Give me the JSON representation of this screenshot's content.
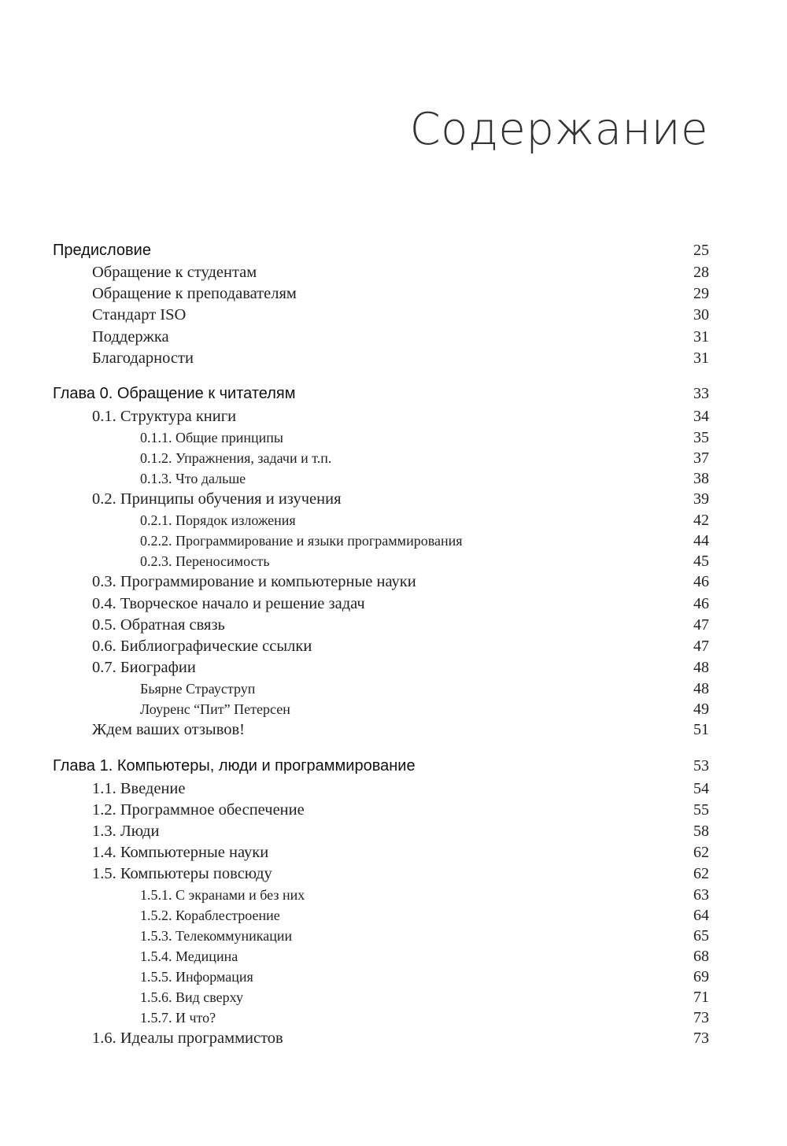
{
  "title": "Содержание",
  "toc": [
    {
      "level": 0,
      "label": "Предисловие",
      "page": "25"
    },
    {
      "level": 1,
      "label": "Обращение к студентам",
      "page": "28"
    },
    {
      "level": 1,
      "label": "Обращение к преподавателям",
      "page": "29"
    },
    {
      "level": 1,
      "label": "Стандарт ISO",
      "page": "30"
    },
    {
      "level": 1,
      "label": "Поддержка",
      "page": "31"
    },
    {
      "level": 1,
      "label": "Благодарности",
      "page": "31"
    },
    {
      "level": 0,
      "label": "Глава 0. Обращение к читателям",
      "page": "33"
    },
    {
      "level": 1,
      "label": "0.1. Структура книги",
      "page": "34"
    },
    {
      "level": 2,
      "label": "0.1.1. Общие принципы",
      "page": "35"
    },
    {
      "level": 2,
      "label": "0.1.2. Упражнения, задачи и т.п.",
      "page": "37"
    },
    {
      "level": 2,
      "label": "0.1.3. Что дальше",
      "page": "38"
    },
    {
      "level": 1,
      "label": "0.2. Принципы обучения и изучения",
      "page": "39"
    },
    {
      "level": 2,
      "label": "0.2.1. Порядок изложения",
      "page": "42"
    },
    {
      "level": 2,
      "label": "0.2.2. Программирование и языки программирования",
      "page": "44"
    },
    {
      "level": 2,
      "label": "0.2.3. Переносимость",
      "page": "45"
    },
    {
      "level": 1,
      "label": "0.3. Программирование и компьютерные науки",
      "page": "46"
    },
    {
      "level": 1,
      "label": "0.4. Творческое начало и решение задач",
      "page": "46"
    },
    {
      "level": 1,
      "label": "0.5. Обратная связь",
      "page": "47"
    },
    {
      "level": 1,
      "label": "0.6. Библиографические ссылки",
      "page": "47"
    },
    {
      "level": 1,
      "label": "0.7. Биографии",
      "page": "48"
    },
    {
      "level": 2,
      "label": "Бьярне Страуструп",
      "page": "48"
    },
    {
      "level": 2,
      "label": "Лоуренс “Пит” Петерсен",
      "page": "49"
    },
    {
      "level": 1,
      "label": "Ждем ваших отзывов!",
      "page": "51"
    },
    {
      "level": 0,
      "label": "Глава 1. Компьютеры, люди и программирование",
      "page": "53"
    },
    {
      "level": 1,
      "label": "1.1. Введение",
      "page": "54"
    },
    {
      "level": 1,
      "label": "1.2. Программное обеспечение",
      "page": "55"
    },
    {
      "level": 1,
      "label": "1.3. Люди",
      "page": "58"
    },
    {
      "level": 1,
      "label": "1.4. Компьютерные науки",
      "page": "62"
    },
    {
      "level": 1,
      "label": "1.5. Компьютеры повсюду",
      "page": "62"
    },
    {
      "level": 2,
      "label": "1.5.1. С экранами и без них",
      "page": "63"
    },
    {
      "level": 2,
      "label": "1.5.2. Кораблестроение",
      "page": "64"
    },
    {
      "level": 2,
      "label": "1.5.3. Телекоммуникации",
      "page": "65"
    },
    {
      "level": 2,
      "label": "1.5.4. Медицина",
      "page": "68"
    },
    {
      "level": 2,
      "label": "1.5.5. Информация",
      "page": "69"
    },
    {
      "level": 2,
      "label": "1.5.6. Вид сверху",
      "page": "71"
    },
    {
      "level": 2,
      "label": "1.5.7. И что?",
      "page": "73"
    },
    {
      "level": 1,
      "label": "1.6. Идеалы программистов",
      "page": "73"
    }
  ]
}
